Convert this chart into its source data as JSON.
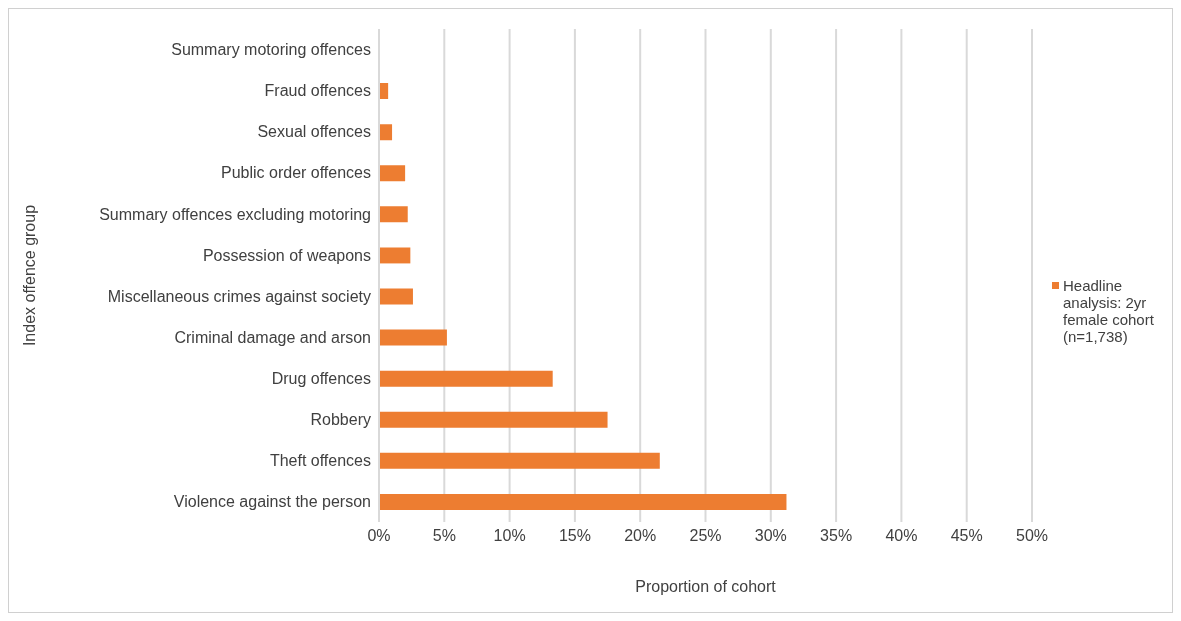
{
  "chart_data": {
    "type": "bar",
    "orientation": "horizontal",
    "xlabel": "Proportion of cohort",
    "ylabel": "Index offence group",
    "categories": [
      "Summary motoring offences",
      "Fraud offences",
      "Sexual offences",
      "Public order offences",
      "Summary offences excluding motoring",
      "Possession of weapons",
      "Miscellaneous crimes against society",
      "Criminal damage and arson",
      "Drug offences",
      "Robbery",
      "Theft offences",
      "Violence against the person"
    ],
    "series": [
      {
        "name": "Headline analysis: 2yr female cohort (n=1,738)",
        "color": "#ed7d31",
        "values": [
          0,
          0.7,
          1.0,
          2.0,
          2.2,
          2.4,
          2.6,
          5.2,
          13.3,
          17.5,
          21.5,
          31.2
        ]
      }
    ],
    "xlim": [
      0,
      50
    ],
    "xticks": [
      {
        "value": 0,
        "label": "0%"
      },
      {
        "value": 5,
        "label": "5%"
      },
      {
        "value": 10,
        "label": "10%"
      },
      {
        "value": 15,
        "label": "15%"
      },
      {
        "value": 20,
        "label": "20%"
      },
      {
        "value": 25,
        "label": "25%"
      },
      {
        "value": 30,
        "label": "30%"
      },
      {
        "value": 35,
        "label": "35%"
      },
      {
        "value": 40,
        "label": "40%"
      },
      {
        "value": 45,
        "label": "45%"
      },
      {
        "value": 50,
        "label": "50%"
      }
    ],
    "grid": "x",
    "legend": "right"
  }
}
